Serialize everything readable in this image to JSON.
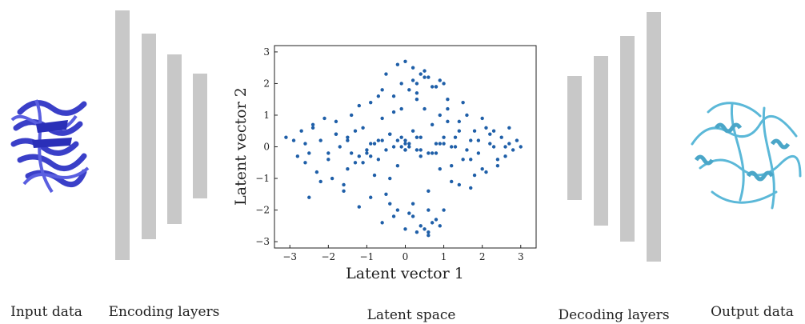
{
  "captions": {
    "input": "Input data",
    "encoding": "Encoding layers",
    "latent": "Latent space",
    "decoding": "Decoding layers",
    "output": "Output data"
  },
  "colors": {
    "input_protein": "#3a3fc8",
    "output_protein": "#5bb8d8",
    "layer": "#c8c8c8",
    "points": "#1f5fa8"
  },
  "chart_data": {
    "type": "scatter",
    "title": "",
    "xlabel": "Latent vector 1",
    "ylabel": "Latent vector 2",
    "xlim": [
      -3.4,
      3.4
    ],
    "ylim": [
      -3.2,
      3.2
    ],
    "xticks": [
      -3,
      -2,
      -1,
      0,
      1,
      2,
      3
    ],
    "yticks": [
      -3,
      -2,
      -1,
      0,
      1,
      2,
      3
    ],
    "xtick_labels": [
      "−3",
      "−2",
      "−1",
      "0",
      "1",
      "2",
      "3"
    ],
    "ytick_labels": [
      "−3",
      "−2",
      "−1",
      "0",
      "1",
      "2",
      "3"
    ],
    "grid": false,
    "series": [
      {
        "name": "",
        "x": [
          -3.1,
          -2.9,
          -2.8,
          -2.7,
          -2.6,
          -2.5,
          -2.5,
          -2.4,
          -2.3,
          -2.2,
          -2.1,
          -2.0,
          -1.9,
          -1.8,
          -1.7,
          -1.6,
          -1.5,
          -1.4,
          -1.3,
          -1.2,
          -1.1,
          -1.0,
          -0.9,
          -0.8,
          -0.7,
          -0.6,
          -0.5,
          -0.4,
          -0.3,
          -0.2,
          -0.1,
          0.0,
          0.1,
          0.2,
          0.3,
          0.4,
          0.5,
          0.6,
          0.7,
          0.8,
          0.9,
          1.0,
          1.1,
          1.2,
          1.3,
          1.4,
          1.5,
          1.6,
          1.7,
          1.8,
          1.9,
          2.0,
          2.1,
          2.2,
          2.3,
          2.4,
          2.5,
          2.6,
          2.7,
          2.8,
          2.9,
          3.0,
          -2.6,
          -2.2,
          -1.8,
          -1.5,
          -1.2,
          -0.9,
          -0.6,
          -0.3,
          0.0,
          0.3,
          0.6,
          0.9,
          1.2,
          1.5,
          1.8,
          2.1,
          2.4,
          2.7,
          -2.4,
          -2.0,
          -1.6,
          -1.3,
          -1.0,
          -0.7,
          -0.4,
          -0.1,
          0.2,
          0.5,
          0.8,
          1.1,
          1.4,
          1.7,
          2.0,
          2.3,
          2.6,
          -0.5,
          -0.3,
          -0.1,
          0.1,
          0.3,
          0.5,
          0.7,
          0.9,
          1.1,
          -0.6,
          -0.4,
          -0.2,
          0.0,
          0.2,
          0.4,
          0.6,
          0.8,
          1.0,
          0.2,
          0.4,
          0.6,
          0.8,
          1.0,
          0.5,
          0.7,
          0.9,
          0.3,
          0.6,
          -0.2,
          0.0,
          0.2,
          -0.1,
          0.1,
          0.3,
          -1.5,
          -1.2,
          -0.9,
          -1.8,
          -1.4,
          -1.1,
          1.3,
          1.6,
          1.9,
          1.4,
          1.7,
          2.2,
          -0.8,
          -0.5,
          -0.2,
          0.1,
          0.4,
          0.7,
          1.0,
          -0.9,
          -0.6,
          -0.3,
          0.0,
          0.3,
          0.6,
          0.9,
          1.2,
          -0.7,
          -0.4,
          0.0,
          0.4,
          0.8
        ],
        "y": [
          0.3,
          0.2,
          -0.3,
          0.5,
          0.1,
          -0.2,
          -1.6,
          0.6,
          -0.8,
          0.2,
          0.9,
          -0.4,
          -1.0,
          0.8,
          0.0,
          -1.2,
          0.3,
          1.0,
          -0.5,
          -1.9,
          0.6,
          -0.2,
          1.4,
          -0.9,
          0.2,
          1.8,
          -1.5,
          0.4,
          1.1,
          -0.6,
          2.0,
          0.1,
          -2.1,
          0.5,
          1.5,
          -0.3,
          2.2,
          -1.4,
          0.7,
          1.9,
          -0.7,
          0.3,
          1.2,
          -1.1,
          0.0,
          0.8,
          -0.4,
          1.0,
          -1.3,
          0.5,
          -0.2,
          0.9,
          -0.8,
          0.4,
          0.0,
          -0.6,
          0.3,
          -0.3,
          0.6,
          -0.1,
          0.2,
          0.0,
          -0.5,
          -1.1,
          0.4,
          -0.7,
          1.3,
          -1.6,
          0.9,
          -2.2,
          -0.1,
          1.7,
          -2.0,
          1.0,
          -0.6,
          1.4,
          -0.9,
          0.6,
          -0.4,
          0.1,
          0.7,
          -0.2,
          -1.4,
          0.5,
          -0.1,
          1.6,
          -1.0,
          0.3,
          -1.8,
          1.2,
          -0.2,
          0.8,
          -1.2,
          0.2,
          -0.7,
          0.5,
          0.0,
          2.3,
          1.6,
          1.2,
          1.8,
          2.0,
          2.4,
          1.9,
          2.1,
          1.5,
          -2.4,
          -1.8,
          -2.0,
          -2.6,
          -2.2,
          -2.5,
          -2.7,
          -2.3,
          -2.0,
          2.1,
          2.3,
          2.2,
          1.9,
          2.0,
          -2.6,
          -2.4,
          -2.5,
          -2.7,
          -2.8,
          2.6,
          2.7,
          2.5,
          0.0,
          0.1,
          -0.1,
          0.2,
          -0.3,
          0.1,
          0.4,
          -0.2,
          -0.5,
          0.3,
          -0.1,
          0.2,
          0.5,
          -0.4,
          0.1,
          0.1,
          -0.1,
          0.2,
          0.0,
          0.3,
          -0.2,
          0.1,
          -0.3,
          0.2,
          0.0,
          -0.1,
          0.3,
          -0.2,
          0.1,
          0.0,
          -0.4,
          0.4,
          0.2,
          -0.1,
          0.1
        ]
      }
    ]
  }
}
